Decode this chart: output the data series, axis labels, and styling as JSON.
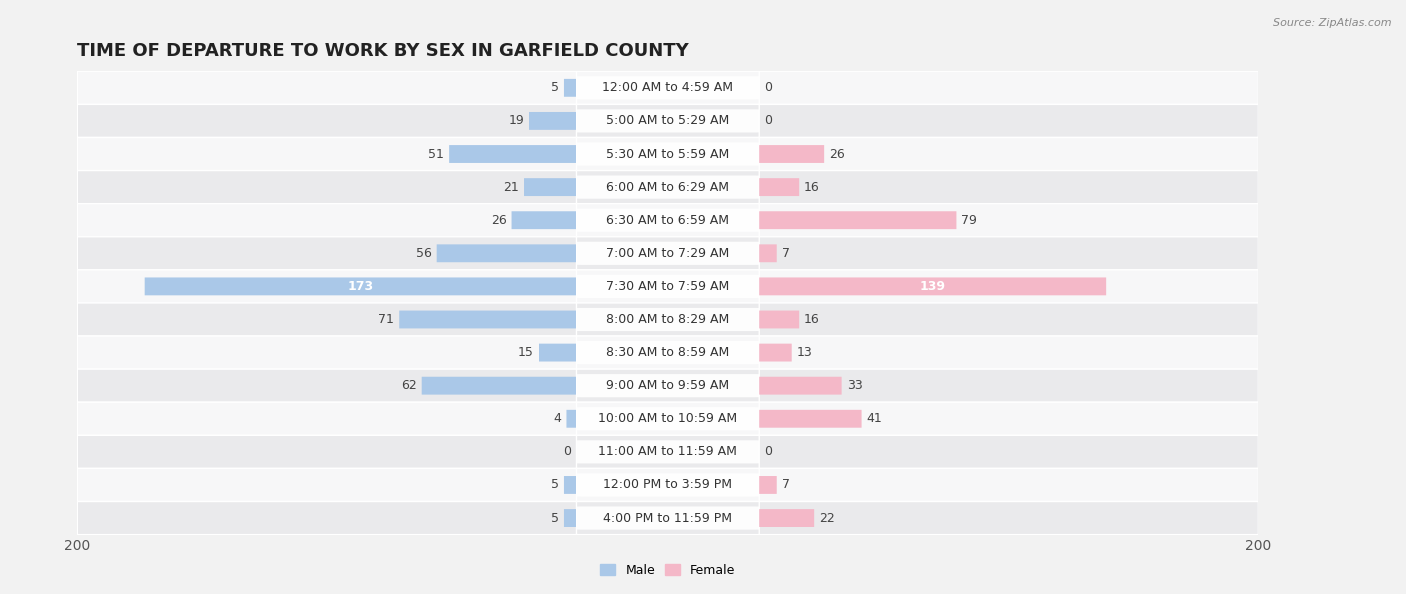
{
  "title": "TIME OF DEPARTURE TO WORK BY SEX IN GARFIELD COUNTY",
  "source": "Source: ZipAtlas.com",
  "categories": [
    "12:00 AM to 4:59 AM",
    "5:00 AM to 5:29 AM",
    "5:30 AM to 5:59 AM",
    "6:00 AM to 6:29 AM",
    "6:30 AM to 6:59 AM",
    "7:00 AM to 7:29 AM",
    "7:30 AM to 7:59 AM",
    "8:00 AM to 8:29 AM",
    "8:30 AM to 8:59 AM",
    "9:00 AM to 9:59 AM",
    "10:00 AM to 10:59 AM",
    "11:00 AM to 11:59 AM",
    "12:00 PM to 3:59 PM",
    "4:00 PM to 11:59 PM"
  ],
  "male_values": [
    5,
    19,
    51,
    21,
    26,
    56,
    173,
    71,
    15,
    62,
    4,
    0,
    5,
    5
  ],
  "female_values": [
    0,
    0,
    26,
    16,
    79,
    7,
    139,
    16,
    13,
    33,
    41,
    0,
    7,
    22
  ],
  "male_color_light": "#aac8e8",
  "male_color_dark": "#6aa0cc",
  "female_color_light": "#f4b8c8",
  "female_color_dark": "#f07898",
  "male_label": "Male",
  "female_label": "Female",
  "axis_max": 200,
  "bg_color": "#f2f2f2",
  "row_bg_even": "#f7f7f8",
  "row_bg_odd": "#eaeaec",
  "title_fontsize": 13,
  "cat_fontsize": 9,
  "value_fontsize": 9,
  "axis_label_fontsize": 10,
  "legend_fontsize": 9
}
